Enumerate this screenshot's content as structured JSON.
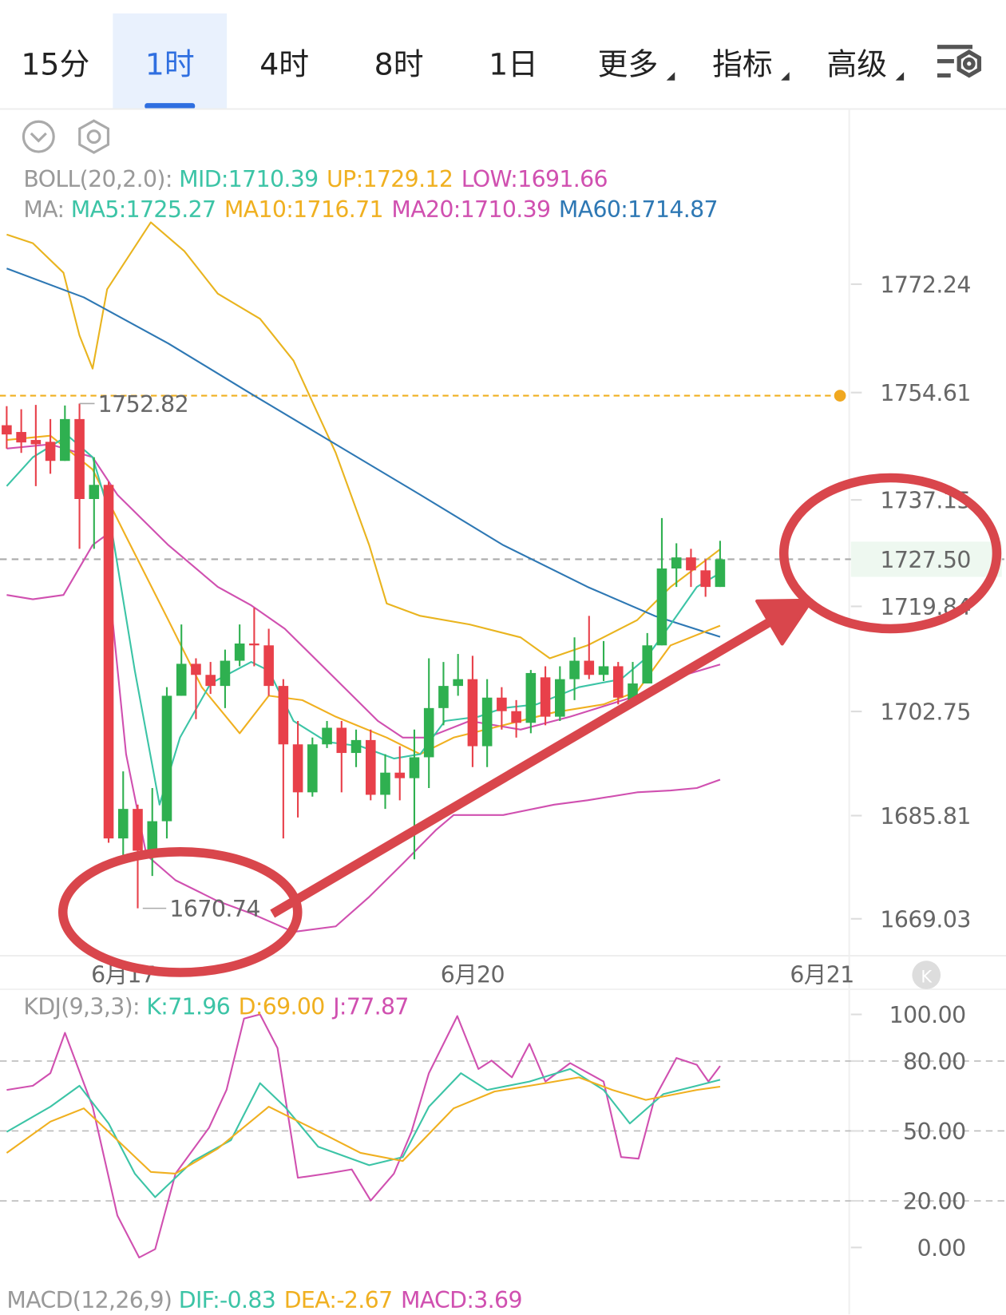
{
  "tabs": [
    {
      "label": "15分"
    },
    {
      "label": "1时",
      "selected": true
    },
    {
      "label": "4时"
    },
    {
      "label": "8时"
    },
    {
      "label": "1日"
    },
    {
      "label": "更多",
      "menu": true
    },
    {
      "label": "指标",
      "menu": true
    },
    {
      "label": "高级",
      "menu": true
    }
  ],
  "boll_legend": {
    "label": "BOLL(20,2.0):",
    "items": [
      {
        "text": "MID:1710.39",
        "color": "#3cc4a6"
      },
      {
        "text": "UP:1729.12",
        "color": "#f0b020"
      },
      {
        "text": "LOW:1691.66",
        "color": "#d050b0"
      }
    ]
  },
  "ma_legend": {
    "label": "MA:",
    "items": [
      {
        "text": "MA5:1725.27",
        "color": "#3cc4a6"
      },
      {
        "text": "MA10:1716.71",
        "color": "#f0b020"
      },
      {
        "text": "MA20:1710.39",
        "color": "#d050b0"
      },
      {
        "text": "MA60:1714.87",
        "color": "#2e78b4"
      }
    ]
  },
  "kdj_legend": {
    "label": "KDJ(9,3,3):",
    "items": [
      {
        "text": "K:71.96",
        "color": "#3cc4a6"
      },
      {
        "text": "D:69.00",
        "color": "#f0b020"
      },
      {
        "text": "J:77.87",
        "color": "#d050b0"
      }
    ]
  },
  "macd_legend": {
    "label": "MACD(12,26,9)",
    "items": [
      {
        "text": "DIF:-0.83",
        "color": "#3cc4a6"
      },
      {
        "text": "DEA:-2.67",
        "color": "#f0b020"
      },
      {
        "text": "MACD:3.69",
        "color": "#d050b0"
      }
    ]
  },
  "chart_data": [
    {
      "type": "candlestick",
      "up_color": "#2fb050",
      "down_color": "#e8404a",
      "open": [
        1749.3,
        1748.2,
        1746.9,
        1746.6,
        1743.5,
        1750.3,
        1737.3,
        1739.6,
        1682.1,
        1686.9,
        1680.1,
        1684.9,
        1705.3,
        1710.5,
        1708.7,
        1706.9,
        1711.0,
        1713.8,
        1713.5,
        1706.9,
        1697.4,
        1689.6,
        1697.4,
        1700.1,
        1696.0,
        1698.1,
        1689.2,
        1692.8,
        1691.9,
        1695.3,
        1703.3,
        1706.9,
        1708.0,
        1697.1,
        1705.0,
        1702.8,
        1700.9,
        1708.3,
        1701.9,
        1708.0,
        1711.0,
        1708.7,
        1710.1,
        1704.6,
        1707.3,
        1713.5,
        1726.0,
        1727.8,
        1725.7,
        1723.0
      ],
      "high": [
        1752.4,
        1751.9,
        1752.6,
        1750.3,
        1752.5,
        1752.82,
        1744.1,
        1740.1,
        1693.0,
        1687.6,
        1690.3,
        1706.7,
        1716.9,
        1711.4,
        1710.8,
        1712.8,
        1716.9,
        1719.6,
        1716.2,
        1708.0,
        1701.2,
        1698.5,
        1701.2,
        1701.2,
        1699.8,
        1699.8,
        1695.8,
        1697.1,
        1699.8,
        1711.4,
        1710.8,
        1712.1,
        1711.8,
        1708.0,
        1706.7,
        1704.6,
        1709.5,
        1710.1,
        1710.1,
        1714.8,
        1718.3,
        1714.2,
        1710.8,
        1710.8,
        1715.5,
        1734.2,
        1730.1,
        1729.2,
        1727.5,
        1730.5
      ],
      "low": [
        1745.5,
        1744.8,
        1739.4,
        1741.4,
        1743.5,
        1729.2,
        1729.2,
        1681.4,
        1679.4,
        1670.74,
        1676.0,
        1682.1,
        1705.3,
        1701.5,
        1705.6,
        1703.3,
        1710.1,
        1710.1,
        1705.3,
        1682.1,
        1685.5,
        1688.9,
        1696.8,
        1689.6,
        1693.7,
        1688.3,
        1686.9,
        1688.3,
        1678.7,
        1690.3,
        1700.5,
        1705.3,
        1693.7,
        1693.7,
        1699.8,
        1698.5,
        1699.2,
        1700.5,
        1701.2,
        1704.6,
        1708.0,
        1707.7,
        1703.9,
        1703.9,
        1707.3,
        1713.5,
        1723.0,
        1723.0,
        1721.4,
        1723.0
      ],
      "close": [
        1747.8,
        1746.5,
        1746.2,
        1743.5,
        1750.3,
        1737.3,
        1739.6,
        1682.1,
        1686.9,
        1680.1,
        1684.9,
        1705.3,
        1710.5,
        1708.7,
        1706.9,
        1711.0,
        1713.8,
        1713.5,
        1706.9,
        1697.4,
        1689.6,
        1697.4,
        1700.1,
        1696.0,
        1698.1,
        1689.2,
        1692.8,
        1691.9,
        1695.3,
        1703.3,
        1706.9,
        1708.0,
        1697.1,
        1705.0,
        1702.8,
        1700.9,
        1709.0,
        1701.9,
        1708.0,
        1711.0,
        1708.7,
        1710.1,
        1705.0,
        1707.3,
        1713.5,
        1726.0,
        1727.8,
        1725.7,
        1723.0,
        1727.5
      ],
      "lines": [
        {
          "color": "#e9b41f",
          "x": [
            0,
            1.8,
            3.9,
            5.0,
            5.9,
            6.9,
            9.9,
            12.2,
            14.5,
            17.4,
            19.7,
            22.6,
            24.9,
            26.1,
            28.4,
            31.8,
            35.3,
            37.3,
            39.9,
            43.3,
            45.6,
            49.0
          ],
          "values": [
            1780.3,
            1778.9,
            1774.1,
            1763.9,
            1758.5,
            1771.4,
            1782.3,
            1777.6,
            1770.7,
            1766.6,
            1759.8,
            1744.8,
            1729.8,
            1720.3,
            1718.3,
            1716.9,
            1714.8,
            1711.4,
            1713.5,
            1717.6,
            1723.0,
            1729.12
          ]
        },
        {
          "color": "#d050b0",
          "x": [
            0,
            1.8,
            3.9,
            5.9,
            6.7,
            8.2,
            9.6,
            11.6,
            14.5,
            16.8,
            19.7,
            22.6,
            24.9,
            27.2,
            29.5,
            30.7,
            34.1,
            37.6,
            39.9,
            43.3,
            45.6,
            47.4,
            49.0
          ],
          "values": [
            1721.7,
            1721.0,
            1721.7,
            1729.8,
            1731.2,
            1695.8,
            1679.4,
            1675.3,
            1671.9,
            1669.9,
            1666.9,
            1667.8,
            1672.6,
            1678.0,
            1683.5,
            1685.9,
            1685.9,
            1687.6,
            1688.3,
            1689.6,
            1689.9,
            1690.3,
            1691.66
          ]
        },
        {
          "color": "#2e78b4",
          "x": [
            0,
            5.3,
            11.1,
            16.8,
            22.6,
            28.4,
            34.1,
            39.9,
            44.5,
            49.0
          ],
          "values": [
            1774.8,
            1770.1,
            1762.6,
            1754.4,
            1746.2,
            1738.0,
            1729.8,
            1723.0,
            1718.3,
            1714.87
          ]
        },
        {
          "color": "#d050b0",
          "x": [
            0,
            3.0,
            5.9,
            7.6,
            11.1,
            14.5,
            16.8,
            19.1,
            22.6,
            25.5,
            27.2,
            28.9,
            31.8,
            35.3,
            38.7,
            43.3,
            45.6,
            49.0
          ],
          "values": [
            1745.5,
            1746.2,
            1744.1,
            1738.0,
            1729.8,
            1723.0,
            1720.0,
            1716.2,
            1708.0,
            1701.2,
            1698.5,
            1698.5,
            1701.2,
            1699.8,
            1701.9,
            1705.3,
            1708.0,
            1710.39
          ]
        },
        {
          "color": "#f0b020",
          "x": [
            0,
            3.0,
            5.9,
            8.2,
            11.1,
            13.4,
            16.0,
            18.0,
            20.3,
            22.6,
            26.1,
            28.4,
            30.7,
            34.1,
            37.6,
            41.0,
            43.3,
            45.6,
            49.0
          ],
          "values": [
            1746.9,
            1747.6,
            1742.1,
            1731.2,
            1717.6,
            1706.7,
            1699.2,
            1705.3,
            1704.6,
            1701.9,
            1698.5,
            1695.8,
            1698.5,
            1700.5,
            1702.6,
            1703.9,
            1706.0,
            1713.5,
            1716.71
          ]
        },
        {
          "color": "#3cc4a6",
          "x": [
            0,
            1.8,
            4.2,
            5.9,
            7.0,
            8.8,
            10.5,
            11.9,
            14.0,
            16.8,
            18.0,
            19.7,
            22.0,
            24.3,
            26.6,
            28.4,
            30.1,
            32.4,
            34.1,
            36.4,
            39.3,
            42.2,
            43.9,
            45.6,
            47.4,
            49.0
          ],
          "values": [
            1739.4,
            1744.1,
            1747.6,
            1744.1,
            1735.3,
            1709.4,
            1687.6,
            1698.5,
            1707.3,
            1710.8,
            1709.4,
            1701.2,
            1697.8,
            1697.1,
            1695.1,
            1695.8,
            1701.2,
            1701.9,
            1703.3,
            1703.9,
            1706.7,
            1708.0,
            1711.4,
            1716.9,
            1723.0,
            1725.27
          ]
        }
      ],
      "xlim": [
        -0.46,
        57.87
      ],
      "xticks": [
        {
          "value": 8,
          "label": "6月17"
        },
        {
          "value": 32,
          "label": "6月20"
        },
        {
          "value": 56,
          "label": "6月21"
        }
      ],
      "ylim": [
        1663,
        1784
      ],
      "yticks": [
        1772.24,
        1754.61,
        1737.15,
        1719.84,
        1702.75,
        1685.81,
        1669.03
      ],
      "current_price": {
        "value": 1727.5,
        "label": "1727.50"
      },
      "alert_level": 1754.1
    },
    {
      "type": "line",
      "series": [
        {
          "color": "#d050b0",
          "x": [
            0,
            1.8,
            3.0,
            4.0,
            5.9,
            7.6,
            9.1,
            10.2,
            11.6,
            13.9,
            15.1,
            16.3,
            17.4,
            18.6,
            20.0,
            22.0,
            23.7,
            25.0,
            26.6,
            27.8,
            29.0,
            30.95,
            32.4,
            33.3,
            34.7,
            35.9,
            37.0,
            38.7,
            41.0,
            42.2,
            43.4,
            44.5,
            46.0,
            47.4,
            48.2,
            49.0
          ],
          "values": [
            67.6,
            69.4,
            74.8,
            92.1,
            60.4,
            13.7,
            -4.3,
            -0.7,
            31.7,
            51.4,
            67.6,
            98.2,
            100.0,
            85.6,
            29.9,
            31.7,
            33.5,
            20.1,
            31.7,
            49.6,
            74.8,
            99.3,
            76.6,
            80.2,
            73.0,
            87.4,
            71.2,
            79.1,
            71.2,
            38.8,
            38.1,
            64.0,
            81.3,
            78.4,
            71.2,
            77.87
          ]
        },
        {
          "color": "#3cc4a6",
          "x": [
            0,
            3.0,
            5.0,
            7.0,
            8.8,
            10.2,
            12.8,
            15.4,
            17.4,
            19.1,
            21.4,
            24.9,
            27.2,
            29.0,
            31.2,
            33.0,
            35.9,
            38.7,
            41.0,
            42.8,
            45.1,
            47.4,
            49.0
          ],
          "values": [
            49.6,
            60.4,
            69.4,
            53.2,
            31.7,
            21.6,
            37.1,
            46.0,
            70.5,
            60.4,
            43.2,
            35.3,
            38.8,
            60.4,
            74.8,
            67.6,
            71.2,
            76.6,
            67.6,
            53.2,
            65.8,
            69.4,
            71.96
          ]
        },
        {
          "color": "#f0b020",
          "x": [
            0,
            3.0,
            5.3,
            7.0,
            9.9,
            11.6,
            14.5,
            18.0,
            20.9,
            24.3,
            27.2,
            30.7,
            33.5,
            37.0,
            39.3,
            41.6,
            43.9,
            47.4,
            49.0
          ],
          "values": [
            40.6,
            54.0,
            59.7,
            49.6,
            32.4,
            31.7,
            42.4,
            60.4,
            51.4,
            40.6,
            37.1,
            59.7,
            66.9,
            70.5,
            73.0,
            67.6,
            63.3,
            67.6,
            69.0
          ]
        }
      ],
      "xlim": [
        -0.46,
        57.87
      ],
      "ylim": [
        -18.7,
        110.8
      ],
      "yticks": [
        {
          "value": 100,
          "label": "100.00"
        },
        {
          "value": 80,
          "label": "80.00"
        },
        {
          "value": 50,
          "label": "50.00"
        },
        {
          "value": 20,
          "label": "20.00"
        },
        {
          "value": 0,
          "label": "0.00"
        }
      ],
      "grid_lines": [
        80,
        50,
        20
      ]
    }
  ]
}
